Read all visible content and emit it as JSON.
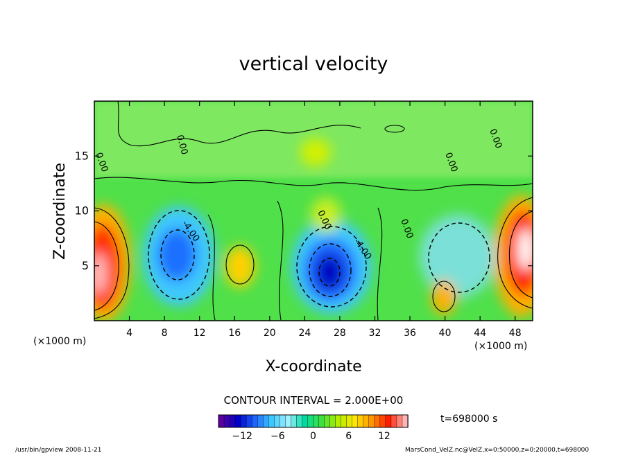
{
  "chart_data": {
    "type": "heatmap",
    "title": "vertical velocity",
    "xlabel": "X-coordinate",
    "ylabel": "Z-coordinate",
    "x_unit_left": "(×1000 m)",
    "x_unit_right": "(×1000 m)",
    "xlim": [
      0,
      50
    ],
    "ylim": [
      0,
      20
    ],
    "x_ticks": [
      "4",
      "8",
      "12",
      "16",
      "20",
      "24",
      "28",
      "32",
      "36",
      "40",
      "44",
      "48"
    ],
    "x_tick_values": [
      4,
      8,
      12,
      16,
      20,
      24,
      28,
      32,
      36,
      40,
      44,
      48
    ],
    "y_ticks": [
      "5",
      "10",
      "15"
    ],
    "y_tick_values": [
      5,
      10,
      15
    ],
    "contour_interval_label": "CONTOUR INTERVAL = 2.000E+00",
    "contour_labels": [
      "0.00",
      "-4.00",
      "-4.00",
      "0.00",
      "0.00",
      "0.00",
      "0.00",
      "0.00"
    ],
    "time_label": "t=698000 s",
    "colorbar": {
      "range": [
        -16,
        16
      ],
      "ticks": [
        "−12",
        "−6",
        "0",
        "6",
        "12"
      ],
      "tick_values": [
        -12,
        -6,
        0,
        6,
        12
      ],
      "colors": [
        "#5a00a0",
        "#0000c8",
        "#1e64ff",
        "#3cc8ff",
        "#a0f0ff",
        "#00dca0",
        "#40e040",
        "#b4ee00",
        "#ffe600",
        "#ff9600",
        "#ff1e00",
        "#ffb4b4"
      ]
    },
    "features": [
      {
        "kind": "updraft",
        "x": 1.5,
        "z": 5.5,
        "value": 14
      },
      {
        "kind": "updraft",
        "x": 48.5,
        "z": 6.5,
        "value": 16
      },
      {
        "kind": "downdraft",
        "x": 9.5,
        "z": 6.0,
        "value": -12
      },
      {
        "kind": "downdraft",
        "x": 27.0,
        "z": 5.0,
        "value": -14
      },
      {
        "kind": "updraft",
        "x": 16.5,
        "z": 5.0,
        "value": 6
      },
      {
        "kind": "updraft",
        "x": 40.0,
        "z": 2.5,
        "value": 8
      }
    ],
    "grid": false,
    "legend": "colorbar-bottom"
  },
  "footer": {
    "left": "/usr/bin/gpview   2008-11-21",
    "right": "MarsCond_VelZ.nc@VelZ,x=0:50000,z=0:20000,t=698000"
  }
}
